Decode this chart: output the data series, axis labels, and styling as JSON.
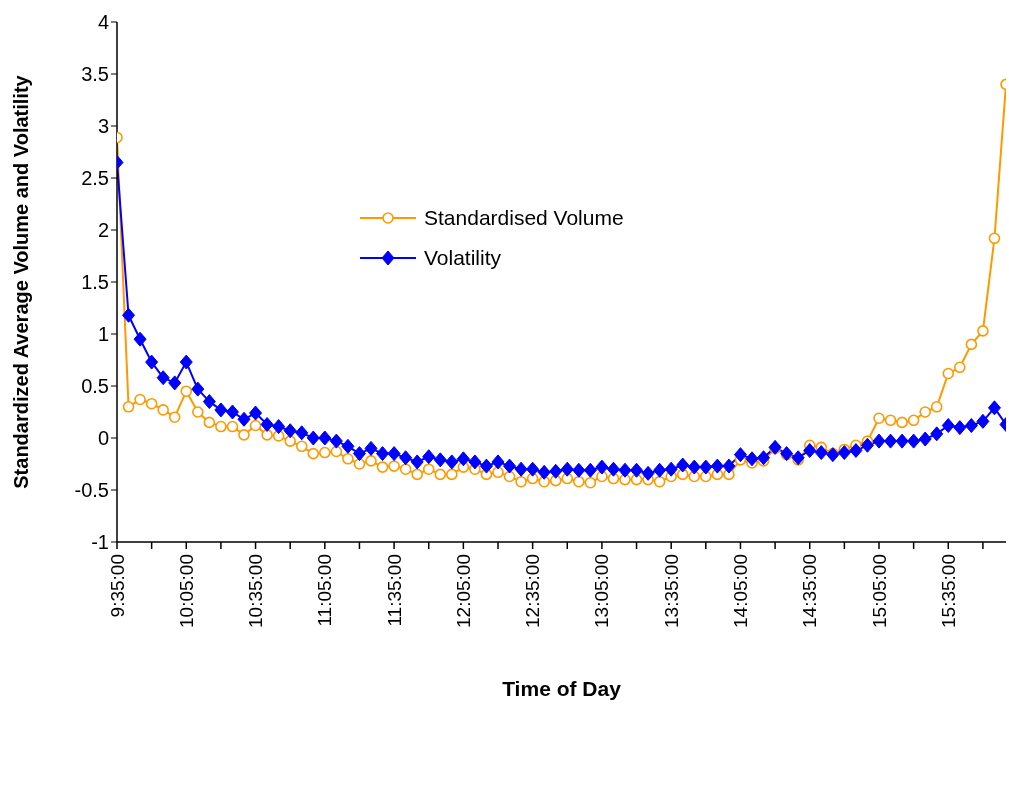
{
  "chart_data": {
    "type": "line",
    "xlabel": "Time of Day",
    "ylabel": "Standardized Average Volume and Volatility",
    "categories": [
      "9:35:00",
      null,
      null,
      null,
      null,
      null,
      "10:05:00",
      null,
      null,
      null,
      null,
      null,
      "10:35:00",
      null,
      null,
      null,
      null,
      null,
      "11:05:00",
      null,
      null,
      null,
      null,
      null,
      "11:35:00",
      null,
      null,
      null,
      null,
      null,
      "12:05:00",
      null,
      null,
      null,
      null,
      null,
      "12:35:00",
      null,
      null,
      null,
      null,
      null,
      "13:05:00",
      null,
      null,
      null,
      null,
      null,
      "13:35:00",
      null,
      null,
      null,
      null,
      null,
      "14:05:00",
      null,
      null,
      null,
      null,
      null,
      "14:35:00",
      null,
      null,
      null,
      null,
      null,
      "15:05:00",
      null,
      null,
      null,
      null,
      null,
      "15:35:00",
      null,
      null,
      null,
      null,
      null
    ],
    "series": [
      {
        "name": "Standardised Volume",
        "color": "#ff9900",
        "marker": "circle",
        "values": [
          2.89,
          0.3,
          0.37,
          0.33,
          0.27,
          0.2,
          0.45,
          0.25,
          0.15,
          0.11,
          0.11,
          0.03,
          0.12,
          0.03,
          0.02,
          -0.03,
          -0.08,
          -0.15,
          -0.14,
          -0.13,
          -0.2,
          -0.25,
          -0.22,
          -0.28,
          -0.27,
          -0.3,
          -0.35,
          -0.3,
          -0.35,
          -0.35,
          -0.28,
          -0.3,
          -0.35,
          -0.33,
          -0.37,
          -0.42,
          -0.39,
          -0.42,
          -0.41,
          -0.39,
          -0.42,
          -0.43,
          -0.37,
          -0.39,
          -0.4,
          -0.4,
          -0.4,
          -0.42,
          -0.37,
          -0.35,
          -0.37,
          -0.37,
          -0.35,
          -0.35,
          -0.21,
          -0.24,
          -0.22,
          -0.1,
          -0.16,
          -0.21,
          -0.07,
          -0.09,
          -0.15,
          -0.11,
          -0.07,
          -0.03,
          0.19,
          0.17,
          0.15,
          0.17,
          0.25,
          0.3,
          0.62,
          0.68,
          0.9,
          1.03,
          1.92,
          3.4
        ]
      },
      {
        "name": "Volatility",
        "color": "#0000ff",
        "marker": "diamond",
        "values": [
          2.65,
          1.18,
          0.95,
          0.73,
          0.58,
          0.53,
          0.73,
          0.47,
          0.35,
          0.27,
          0.25,
          0.18,
          0.24,
          0.13,
          0.11,
          0.07,
          0.05,
          0.0,
          0.0,
          -0.03,
          -0.08,
          -0.15,
          -0.1,
          -0.15,
          -0.15,
          -0.19,
          -0.23,
          -0.18,
          -0.21,
          -0.23,
          -0.2,
          -0.23,
          -0.27,
          -0.23,
          -0.27,
          -0.3,
          -0.3,
          -0.33,
          -0.32,
          -0.3,
          -0.31,
          -0.31,
          -0.28,
          -0.3,
          -0.31,
          -0.31,
          -0.34,
          -0.31,
          -0.3,
          -0.26,
          -0.28,
          -0.28,
          -0.27,
          -0.27,
          -0.16,
          -0.2,
          -0.19,
          -0.09,
          -0.15,
          -0.19,
          -0.12,
          -0.14,
          -0.16,
          -0.14,
          -0.12,
          -0.07,
          -0.03,
          -0.03,
          -0.03,
          -0.03,
          -0.01,
          0.04,
          0.12,
          0.1,
          0.12,
          0.16,
          0.29,
          0.13
        ]
      }
    ],
    "ylim": [
      -1,
      4
    ],
    "yticks": [
      -1,
      -0.5,
      0,
      0.5,
      1,
      1.5,
      2,
      2.5,
      3,
      3.5,
      4
    ],
    "legend": "top"
  }
}
